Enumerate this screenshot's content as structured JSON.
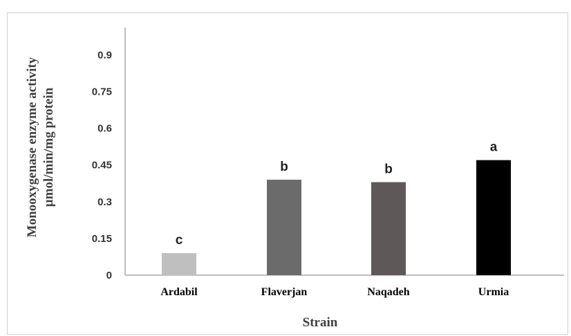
{
  "chart_data": {
    "type": "bar",
    "categories": [
      "Ardabil",
      "Flaverjan",
      "Naqadeh",
      "Urmia"
    ],
    "values": [
      0.09,
      0.39,
      0.38,
      0.47
    ],
    "letters": [
      "c",
      "b",
      "b",
      "a"
    ],
    "colors": [
      "#bfbfbf",
      "#6b6b6b",
      "#5e5858",
      "#000000"
    ],
    "yticks": [
      "0",
      "0.15",
      "0.3",
      "0.45",
      "0.6",
      "0.75",
      "0.9"
    ],
    "ylim": [
      0,
      1.0
    ],
    "xlabel": "Strain",
    "ylabel_line1": "Monooxygenase enzyme activity",
    "ylabel_line2": "µmol/min/mg protein",
    "grid": false
  }
}
